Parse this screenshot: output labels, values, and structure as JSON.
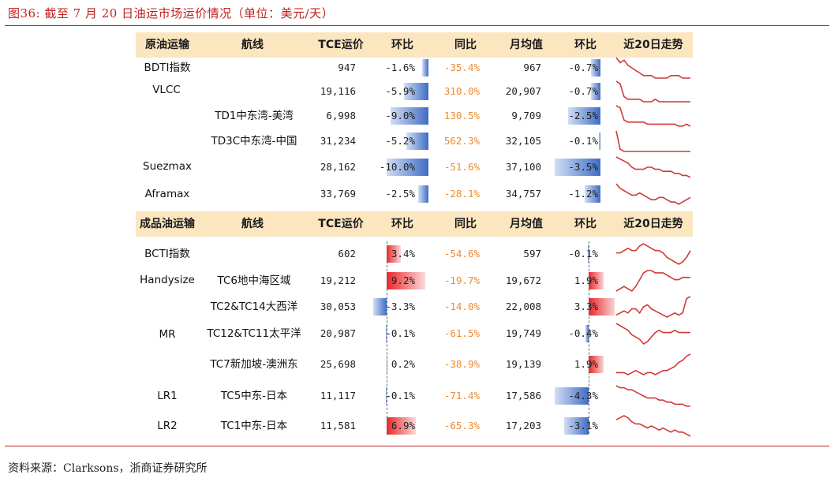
{
  "figure": {
    "title": "图36:   截至 7 月 20 日油运市场运价情况（单位：美元/天）",
    "source": "资料来源：Clarksons，浙商证券研究所"
  },
  "crude": {
    "headers": [
      "原油运输",
      "航线",
      "TCE运价",
      "环比",
      "同比",
      "月均值",
      "环比",
      "近20日走势"
    ],
    "rows": [
      {
        "group": "BDTI指数",
        "route": "",
        "tce": "947",
        "tce_mom": "-1.6%",
        "tce_mom_val": -1.6,
        "yoy": "-35.4%",
        "avg": "967",
        "avg_mom": "-0.7%",
        "avg_mom_val": -0.7,
        "trend": [
          10,
          8,
          9,
          7,
          6,
          5,
          4,
          3,
          3,
          3,
          2,
          2,
          2,
          2,
          3,
          3,
          3,
          2,
          2,
          2
        ]
      },
      {
        "group": "VLCC",
        "route": "",
        "tce": "19,116",
        "tce_mom": "-5.9%",
        "tce_mom_val": -5.9,
        "yoy": "310.0%",
        "avg": "20,907",
        "avg_mom": "-0.7%",
        "avg_mom_val": -0.7,
        "trend": [
          10,
          9,
          4,
          3,
          3,
          3,
          3,
          2,
          2,
          2,
          3,
          2,
          2,
          2,
          2,
          2,
          2,
          2,
          2,
          2
        ]
      },
      {
        "group": "",
        "route": "TD1中东湾-美湾",
        "tce": "6,998",
        "tce_mom": "-9.0%",
        "tce_mom_val": -9.0,
        "yoy": "130.5%",
        "avg": "9,709",
        "avg_mom": "-2.5%",
        "avg_mom_val": -2.5,
        "trend": [
          10,
          9,
          3,
          2,
          2,
          2,
          2,
          2,
          1,
          1,
          1,
          1,
          1,
          1,
          1,
          1,
          0,
          0,
          1,
          0
        ]
      },
      {
        "group": "",
        "route": "TD3C中东湾-中国",
        "tce": "31,234",
        "tce_mom": "-5.2%",
        "tce_mom_val": -5.2,
        "yoy": "562.3%",
        "avg": "32,105",
        "avg_mom": "-0.1%",
        "avg_mom_val": -0.1,
        "trend": [
          10,
          2,
          1,
          1,
          1,
          1,
          1,
          1,
          1,
          1,
          1,
          1,
          1,
          1,
          1,
          1,
          1,
          1,
          1,
          1
        ]
      },
      {
        "group": "Suezmax",
        "route": "",
        "tce": "28,162",
        "tce_mom": "-10.0%",
        "tce_mom_val": -10.0,
        "yoy": "-51.6%",
        "avg": "37,100",
        "avg_mom": "-3.5%",
        "avg_mom_val": -3.5,
        "trend": [
          10,
          9,
          8,
          7,
          5,
          4,
          4,
          4,
          5,
          5,
          4,
          4,
          3,
          3,
          3,
          2,
          2,
          1,
          1,
          0
        ]
      },
      {
        "group": "Aframax",
        "route": "",
        "tce": "33,769",
        "tce_mom": "-2.5%",
        "tce_mom_val": -2.5,
        "yoy": "-28.1%",
        "avg": "34,757",
        "avg_mom": "-1.2%",
        "avg_mom_val": -1.2,
        "trend": [
          10,
          8,
          7,
          6,
          5,
          5,
          6,
          5,
          4,
          3,
          3,
          4,
          4,
          3,
          2,
          2,
          1,
          2,
          3,
          4
        ]
      }
    ]
  },
  "product": {
    "headers": [
      "成品油运输",
      "航线",
      "TCE运价",
      "环比",
      "同比",
      "月均值",
      "环比",
      "近20日走势"
    ],
    "rows": [
      {
        "group": "BCTI指数",
        "route": "",
        "tce": "602",
        "tce_mom": "3.4%",
        "tce_mom_val": 3.4,
        "yoy": "-54.6%",
        "avg": "597",
        "avg_mom": "-0.1%",
        "avg_mom_val": -0.1,
        "trend": [
          6,
          6,
          7,
          8,
          7,
          7,
          9,
          10,
          9,
          8,
          7,
          7,
          6,
          4,
          3,
          2,
          1,
          2,
          4,
          7
        ]
      },
      {
        "group": "Handysize",
        "route": "TC6地中海区域",
        "tce": "19,212",
        "tce_mom": "9.2%",
        "tce_mom_val": 9.2,
        "yoy": "-19.7%",
        "avg": "19,672",
        "avg_mom": "1.9%",
        "avg_mom_val": 1.9,
        "trend": [
          1,
          2,
          3,
          2,
          1,
          3,
          6,
          9,
          10,
          10,
          9,
          9,
          9,
          8,
          7,
          6,
          6,
          7,
          7,
          7
        ]
      },
      {
        "group": "",
        "route": "TC2&TC14大西洋",
        "tce": "30,053",
        "tce_mom": "-3.3%",
        "tce_mom_val": -3.3,
        "yoy": "-14.0%",
        "avg": "22,008",
        "avg_mom": "3.3%",
        "avg_mom_val": 3.3,
        "trend": [
          1,
          2,
          3,
          2,
          4,
          4,
          2,
          5,
          6,
          4,
          3,
          2,
          1,
          0,
          1,
          2,
          1,
          2,
          9,
          10
        ]
      },
      {
        "group": "MR",
        "route": "TC12&TC11太平洋",
        "tce": "20,987",
        "tce_mom": "-0.1%",
        "tce_mom_val": -0.1,
        "yoy": "-61.5%",
        "avg": "19,749",
        "avg_mom": "-0.4%",
        "avg_mom_val": -0.4,
        "trend": [
          10,
          9,
          8,
          7,
          5,
          4,
          3,
          1,
          2,
          4,
          6,
          7,
          6,
          6,
          6,
          7,
          6,
          6,
          6,
          6
        ]
      },
      {
        "group": "",
        "route": "TC7新加坡-澳洲东",
        "tce": "25,698",
        "tce_mom": "0.2%",
        "tce_mom_val": 0.2,
        "yoy": "-38.9%",
        "avg": "19,139",
        "avg_mom": "1.9%",
        "avg_mom_val": 1.9,
        "trend": [
          1,
          1,
          1,
          0,
          1,
          2,
          1,
          0,
          1,
          1,
          0,
          1,
          2,
          2,
          3,
          4,
          6,
          7,
          9,
          10
        ]
      },
      {
        "group": "LR1",
        "route": "TC5中东-日本",
        "tce": "11,117",
        "tce_mom": "-0.1%",
        "tce_mom_val": -0.1,
        "yoy": "-71.4%",
        "avg": "17,586",
        "avg_mom": "-4.3%",
        "avg_mom_val": -4.3,
        "trend": [
          10,
          9,
          9,
          8,
          8,
          7,
          6,
          5,
          4,
          4,
          4,
          3,
          3,
          2,
          2,
          1,
          1,
          1,
          0,
          0
        ]
      },
      {
        "group": "LR2",
        "route": "TC1中东-日本",
        "tce": "11,581",
        "tce_mom": "6.9%",
        "tce_mom_val": 6.9,
        "yoy": "-65.3%",
        "avg": "17,203",
        "avg_mom": "-3.1%",
        "avg_mom_val": -3.1,
        "trend": [
          8,
          9,
          10,
          9,
          7,
          6,
          6,
          5,
          4,
          5,
          4,
          3,
          4,
          3,
          2,
          3,
          2,
          2,
          1,
          0
        ]
      }
    ]
  }
}
